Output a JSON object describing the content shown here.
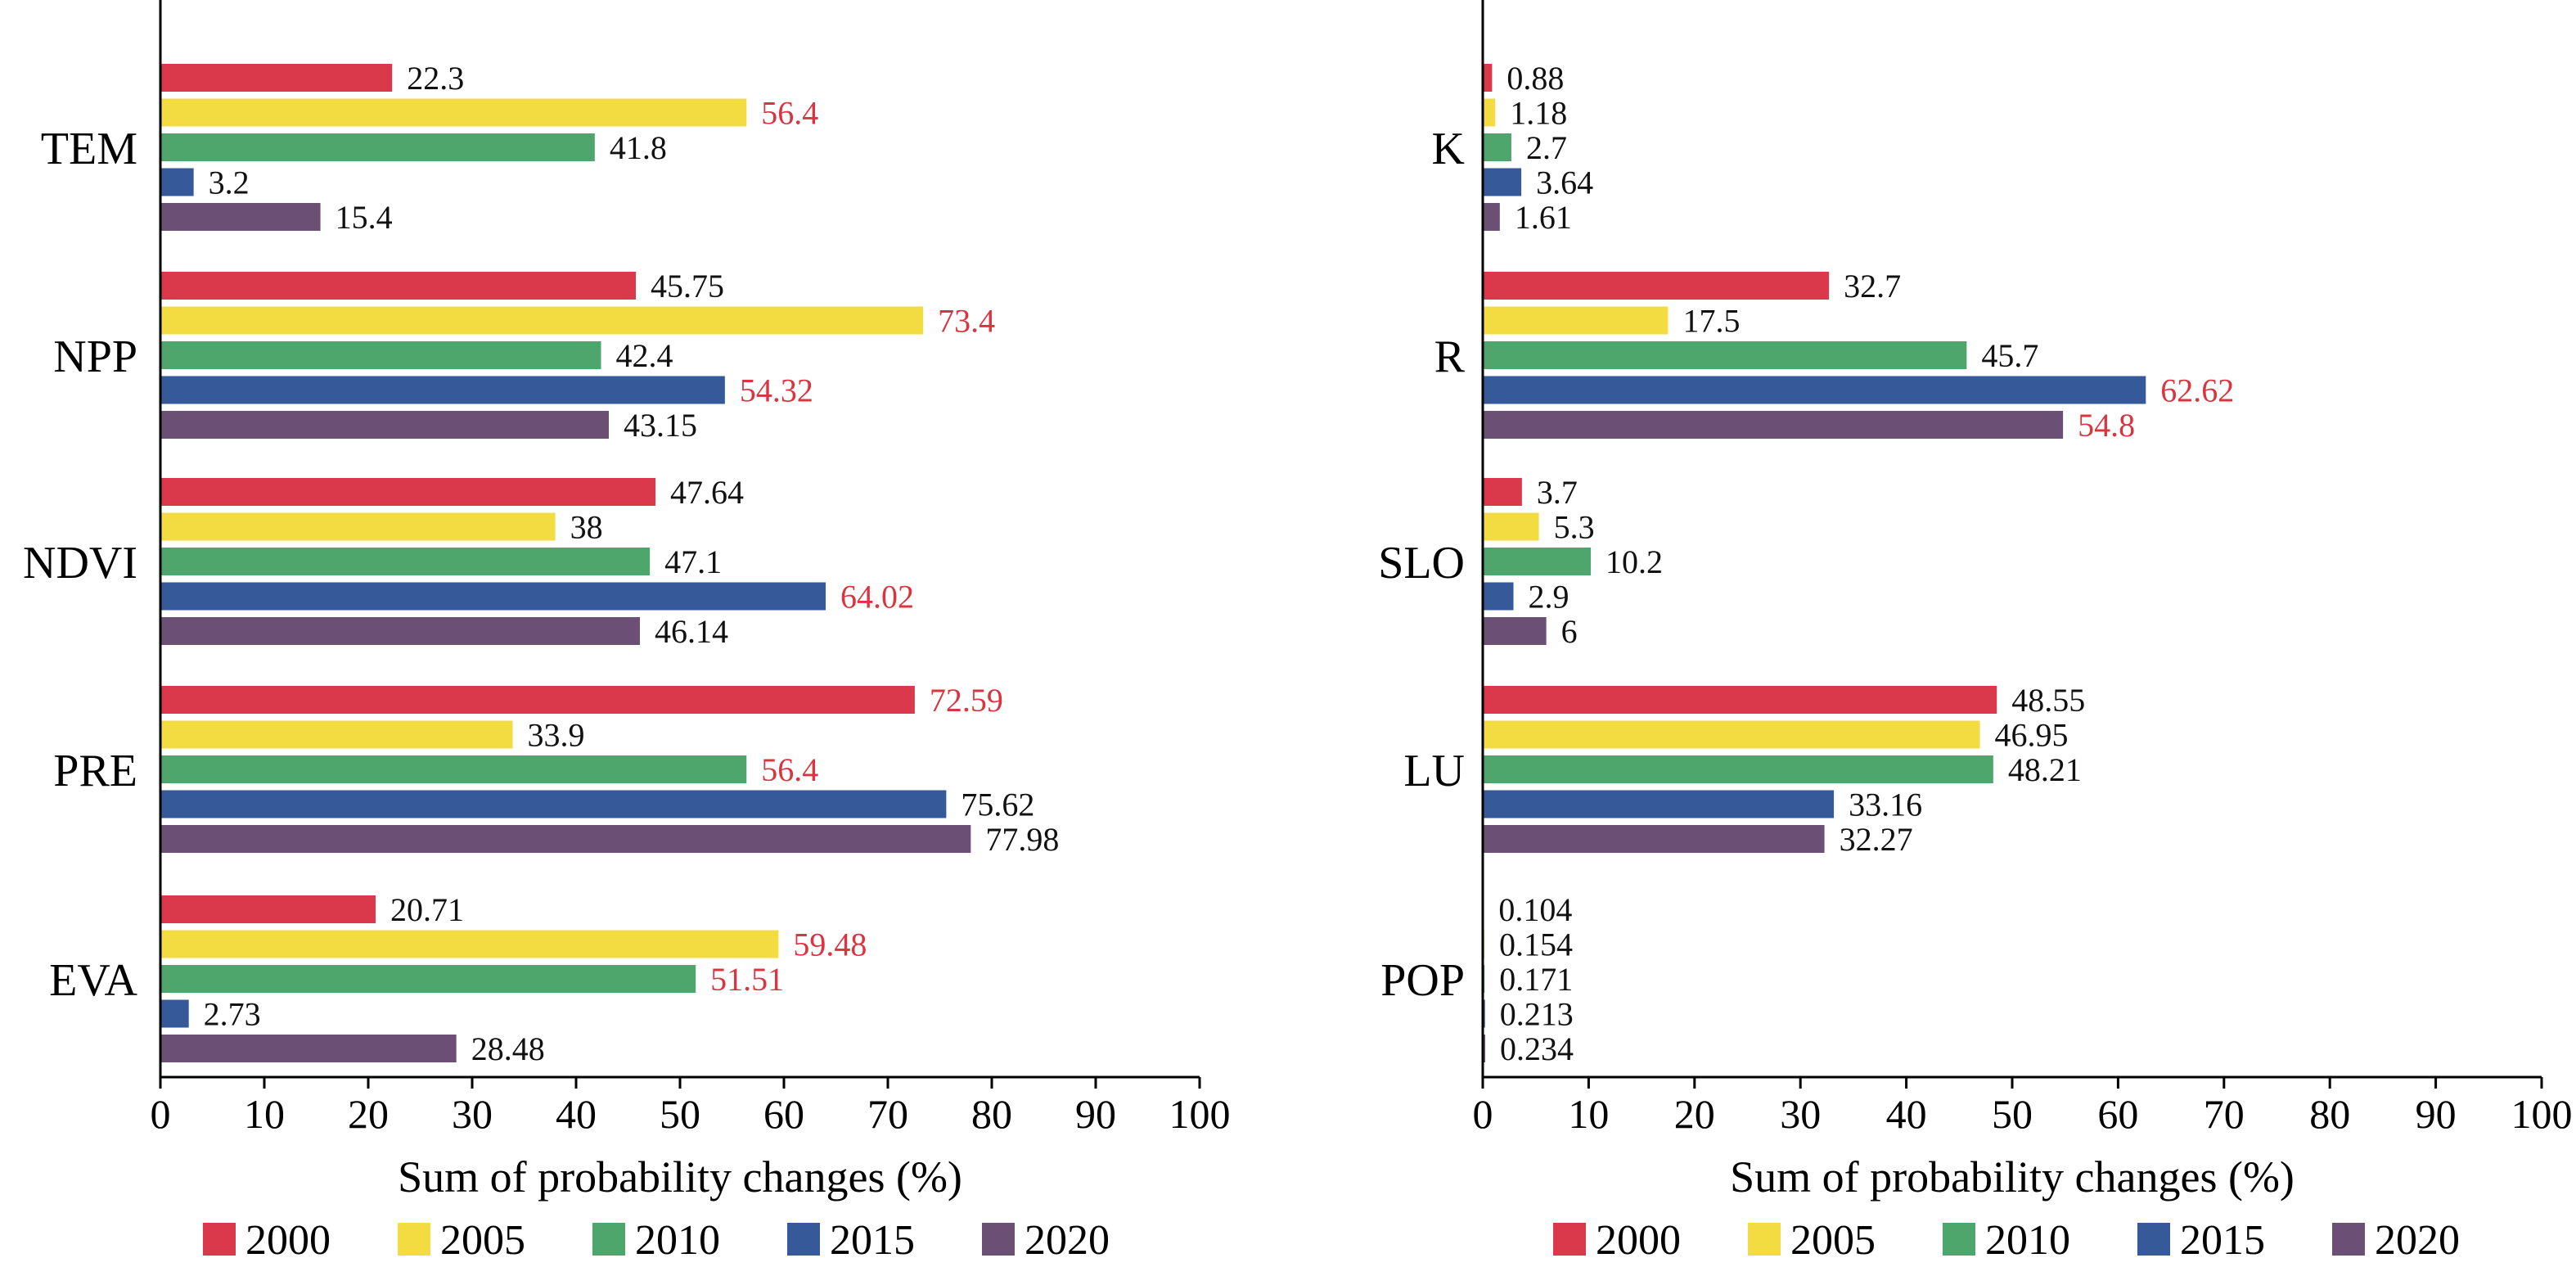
{
  "chart_data": [
    {
      "type": "bar",
      "orientation": "horizontal",
      "categories": [
        "TEM",
        "NPP",
        "NDVI",
        "PRE",
        "EVA"
      ],
      "series": [
        {
          "name": "2000",
          "values": [
            22.3,
            45.75,
            47.64,
            72.59,
            20.71
          ],
          "labels": [
            "22.3",
            "45.75",
            "47.64",
            "72.59",
            "20.71"
          ],
          "highlight": [
            false,
            false,
            false,
            true,
            false
          ]
        },
        {
          "name": "2005",
          "values": [
            56.4,
            73.4,
            38,
            33.9,
            59.48
          ],
          "labels": [
            "56.4",
            "73.4",
            "38",
            "33.9",
            "59.48"
          ],
          "highlight": [
            true,
            true,
            false,
            false,
            true
          ]
        },
        {
          "name": "2010",
          "values": [
            41.8,
            42.4,
            47.1,
            56.4,
            51.51
          ],
          "labels": [
            "41.8",
            "42.4",
            "47.1",
            "56.4",
            "51.51"
          ],
          "highlight": [
            false,
            false,
            false,
            true,
            true
          ]
        },
        {
          "name": "2015",
          "values": [
            3.2,
            54.32,
            64.02,
            75.62,
            2.73
          ],
          "labels": [
            "3.2",
            "54.32",
            "64.02",
            "75.62",
            "2.73"
          ],
          "highlight": [
            false,
            true,
            true,
            false,
            false
          ]
        },
        {
          "name": "2020",
          "values": [
            15.4,
            43.15,
            46.14,
            77.98,
            28.48
          ],
          "labels": [
            "15.4",
            "43.15",
            "46.14",
            "77.98",
            "28.48"
          ],
          "highlight": [
            false,
            false,
            false,
            false,
            false
          ]
        }
      ],
      "xlabel": "Sum of probability changes (%)",
      "ylabel": "",
      "xlim": [
        0,
        100
      ],
      "xticks": [
        "0",
        "10",
        "20",
        "30",
        "40",
        "50",
        "60",
        "70",
        "80",
        "90",
        "100"
      ],
      "grid": false,
      "legend_position": "bottom"
    },
    {
      "type": "bar",
      "orientation": "horizontal",
      "categories": [
        "K",
        "R",
        "SLO",
        "LU",
        "POP"
      ],
      "series": [
        {
          "name": "2000",
          "values": [
            0.88,
            32.7,
            3.7,
            48.55,
            0.104
          ],
          "labels": [
            "0.88",
            "32.7",
            "3.7",
            "48.55",
            "0.104"
          ],
          "highlight": [
            false,
            false,
            false,
            false,
            false
          ]
        },
        {
          "name": "2005",
          "values": [
            1.18,
            17.5,
            5.3,
            46.95,
            0.154
          ],
          "labels": [
            "1.18",
            "17.5",
            "5.3",
            "46.95",
            "0.154"
          ],
          "highlight": [
            false,
            false,
            false,
            false,
            false
          ]
        },
        {
          "name": "2010",
          "values": [
            2.7,
            45.7,
            10.2,
            48.21,
            0.171
          ],
          "labels": [
            "2.7",
            "45.7",
            "10.2",
            "48.21",
            "0.171"
          ],
          "highlight": [
            false,
            false,
            false,
            false,
            false
          ]
        },
        {
          "name": "2015",
          "values": [
            3.64,
            62.62,
            2.9,
            33.16,
            0.213
          ],
          "labels": [
            "3.64",
            "62.62",
            "2.9",
            "33.16",
            "0.213"
          ],
          "highlight": [
            false,
            true,
            false,
            false,
            false
          ]
        },
        {
          "name": "2020",
          "values": [
            1.61,
            54.8,
            6,
            32.27,
            0.234
          ],
          "labels": [
            "1.61",
            "54.8",
            "6",
            "32.27",
            "0.234"
          ],
          "highlight": [
            false,
            true,
            false,
            false,
            false
          ]
        }
      ],
      "xlabel": "Sum of probability changes (%)",
      "ylabel": "",
      "xlim": [
        0,
        100
      ],
      "xticks": [
        "0",
        "10",
        "20",
        "30",
        "40",
        "50",
        "60",
        "70",
        "80",
        "90",
        "100"
      ],
      "grid": false,
      "legend_position": "bottom"
    }
  ],
  "colors": {
    "series": [
      "#d9394a",
      "#f2dc41",
      "#4ea66c",
      "#36599a",
      "#6b4f75"
    ],
    "highlight_label": "#d9343f",
    "normal_label": "#111111"
  }
}
